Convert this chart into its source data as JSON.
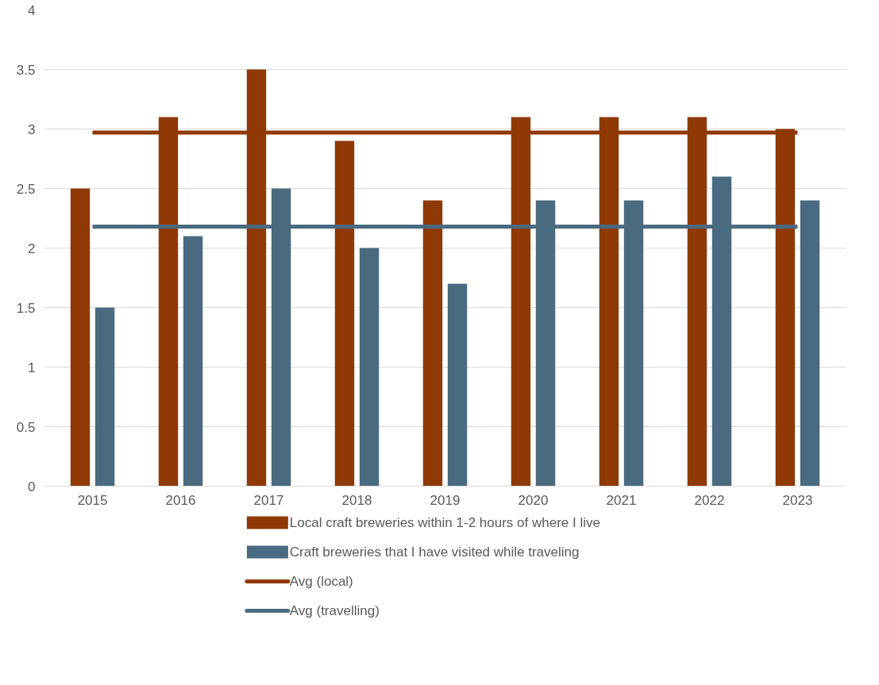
{
  "chart_data": {
    "type": "bar",
    "categories": [
      "2015",
      "2016",
      "2017",
      "2018",
      "2019",
      "2020",
      "2021",
      "2022",
      "2023"
    ],
    "series": [
      {
        "name": "Local craft breweries within 1-2 hours of where I live",
        "color": "#8f3906",
        "values": [
          2.5,
          3.1,
          3.5,
          2.9,
          2.4,
          3.1,
          3.1,
          3.1,
          3.0
        ]
      },
      {
        "name": "Craft breweries that I have visited while traveling",
        "color": "#4a6a80",
        "values": [
          1.5,
          2.1,
          2.5,
          2.0,
          1.7,
          2.4,
          2.4,
          2.6,
          2.4
        ]
      },
      {
        "name": "Avg (local)",
        "type": "line",
        "color": "#8f3906",
        "values": [
          2.97,
          2.97,
          2.97,
          2.97,
          2.97,
          2.97,
          2.97,
          2.97,
          2.97
        ]
      },
      {
        "name": "Avg (travelling)",
        "type": "line",
        "color": "#4a6a80",
        "values": [
          2.18,
          2.18,
          2.18,
          2.18,
          2.18,
          2.18,
          2.18,
          2.18,
          2.18
        ]
      }
    ],
    "ylim": [
      0,
      4
    ],
    "yticks": [
      0,
      0.5,
      1,
      1.5,
      2,
      2.5,
      3,
      3.5,
      4
    ],
    "grid": "y",
    "legend": "bottom",
    "line_style": "solid",
    "marker": "none"
  }
}
